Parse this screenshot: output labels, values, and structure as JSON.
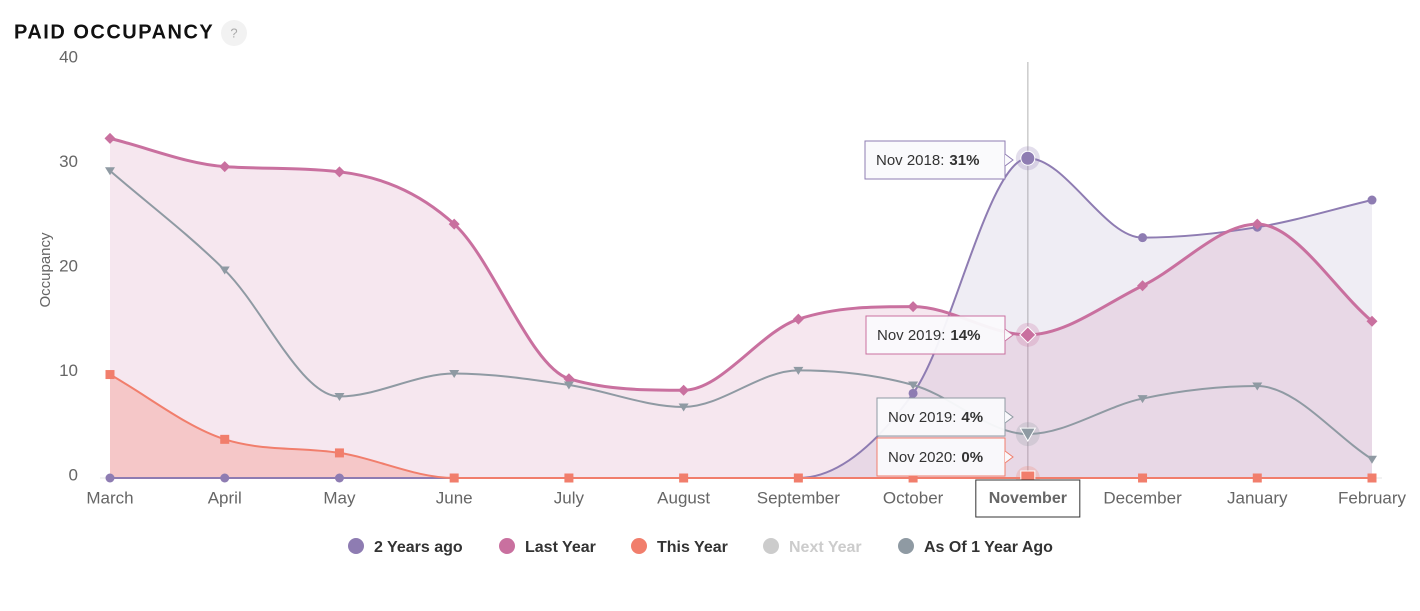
{
  "chart_data": {
    "type": "area-spline",
    "title": "PAID OCCUPANCY",
    "help": "?",
    "y_label": "Occupancy",
    "categories": [
      "March",
      "April",
      "May",
      "June",
      "July",
      "August",
      "September",
      "October",
      "November",
      "December",
      "January",
      "February"
    ],
    "ylim": [
      0,
      40
    ],
    "yticks": [
      0,
      10,
      20,
      30,
      40
    ],
    "grid": false,
    "legend": "bottom",
    "series": [
      {
        "name": "2 Years ago",
        "color": "#8e7cb2",
        "marker": "circle",
        "area": true,
        "visible": true,
        "values": [
          0,
          0,
          0,
          0,
          0,
          0,
          0,
          8.1,
          30.6,
          23.0,
          24.0,
          26.6
        ]
      },
      {
        "name": "Last Year",
        "color": "#c9709f",
        "marker": "diamond",
        "area": true,
        "visible": true,
        "values": [
          32.5,
          29.8,
          29.3,
          24.3,
          9.5,
          8.4,
          15.2,
          16.4,
          13.7,
          18.4,
          24.3,
          15.0
        ]
      },
      {
        "name": "This Year",
        "color": "#f17e6c",
        "marker": "square",
        "area": true,
        "visible": true,
        "values": [
          9.9,
          3.7,
          2.4,
          0,
          0,
          0,
          0,
          0,
          0,
          0,
          0,
          0
        ]
      },
      {
        "name": "Next Year",
        "color": "#cccccc",
        "marker": "circle",
        "area": false,
        "visible": false,
        "values": [
          null,
          null,
          null,
          null,
          null,
          null,
          null,
          null,
          null,
          null,
          null,
          null
        ]
      },
      {
        "name": "As Of 1 Year Ago",
        "color": "#8f9aa3",
        "marker": "triangle-down",
        "area": false,
        "visible": true,
        "values": [
          29.4,
          19.9,
          7.8,
          10.0,
          8.9,
          6.8,
          10.3,
          8.9,
          4.2,
          7.6,
          8.8,
          1.8
        ]
      }
    ],
    "tooltip": [
      {
        "text": "Nov 2018:",
        "value": "31%"
      },
      {
        "text": "Nov 2019:",
        "value": "14%"
      },
      {
        "text": "Nov 2019:",
        "value": "4%"
      },
      {
        "text": "Nov 2020:",
        "value": "0%"
      }
    ]
  }
}
